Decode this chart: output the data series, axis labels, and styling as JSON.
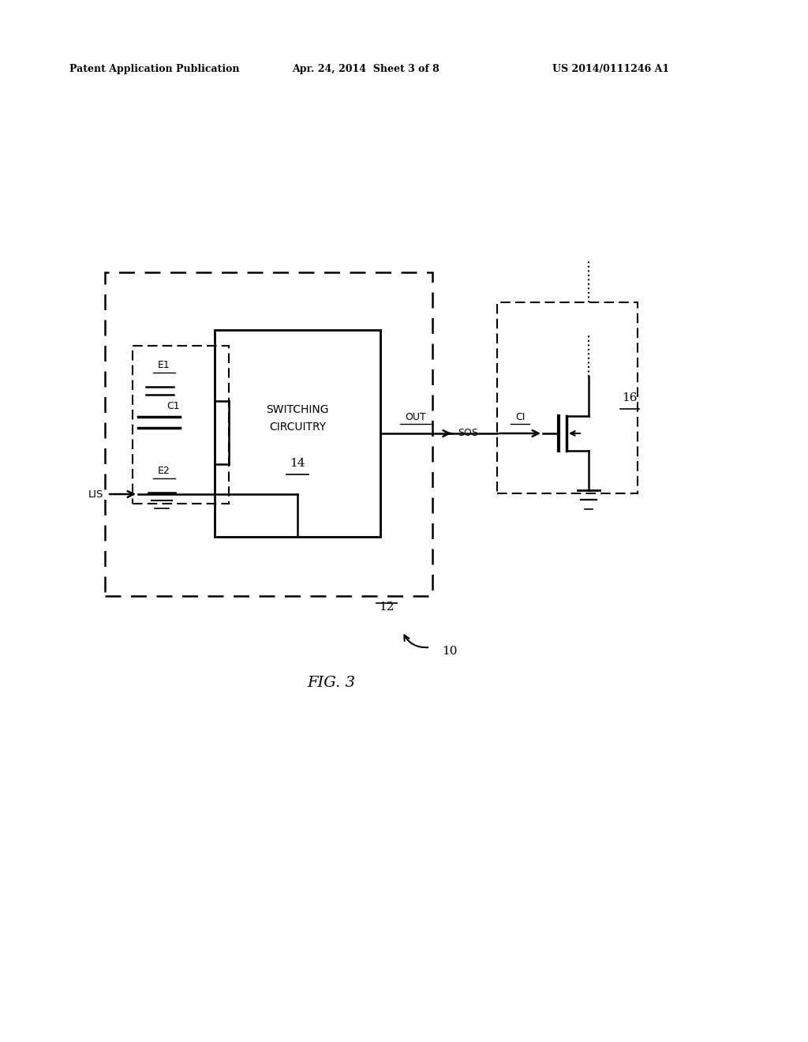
{
  "bg_color": "#ffffff",
  "line_color": "#000000",
  "header_left": "Patent Application Publication",
  "header_mid": "Apr. 24, 2014  Sheet 3 of 8",
  "header_right": "US 2014/0111246 A1",
  "fig_label": "FIG. 3",
  "label_10": "10",
  "label_12": "12",
  "label_14": "14",
  "label_16": "16",
  "label_switching": "SWITCHING",
  "label_circuitry": "CIRCUITRY",
  "label_E1": "E1",
  "label_C1": "C1",
  "label_E2": "E2",
  "label_LIS": "LIS",
  "label_OUT": "OUT",
  "label_SOS": "SOS",
  "label_CI": "CI"
}
